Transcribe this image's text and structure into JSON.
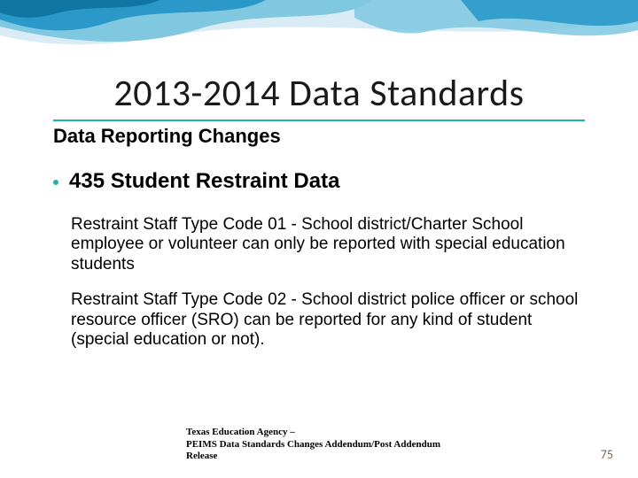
{
  "colors": {
    "accent": "#1fb5ad",
    "wave_light": "#d9ecf5",
    "wave_mid": "#7fc8e0",
    "wave_dark": "#2a99c9",
    "wave_deep": "#1076a3",
    "text": "#000000",
    "page_num": "#7a6a58",
    "background": "#ffffff"
  },
  "title": "2013-2014 Data Standards",
  "subtitle": "Data Reporting Changes",
  "bullet": {
    "heading": "435 Student Restraint Data",
    "paragraphs": [
      "Restraint Staff Type Code 01 - School district/Charter School employee or volunteer can only be reported with special education students",
      "Restraint Staff Type Code 02 - School district police officer or school resource officer (SRO) can be reported for any kind of student (special education or not)."
    ]
  },
  "footer_citation": "Texas Education Agency –\nPEIMS Data Standards Changes Addendum/Post Addendum Release",
  "page_number": "75",
  "typography": {
    "title_fontsize": 42,
    "subtitle_fontsize": 22,
    "bullet_heading_fontsize": 24,
    "body_fontsize": 19,
    "footer_fontsize": 11,
    "page_num_fontsize": 14
  }
}
